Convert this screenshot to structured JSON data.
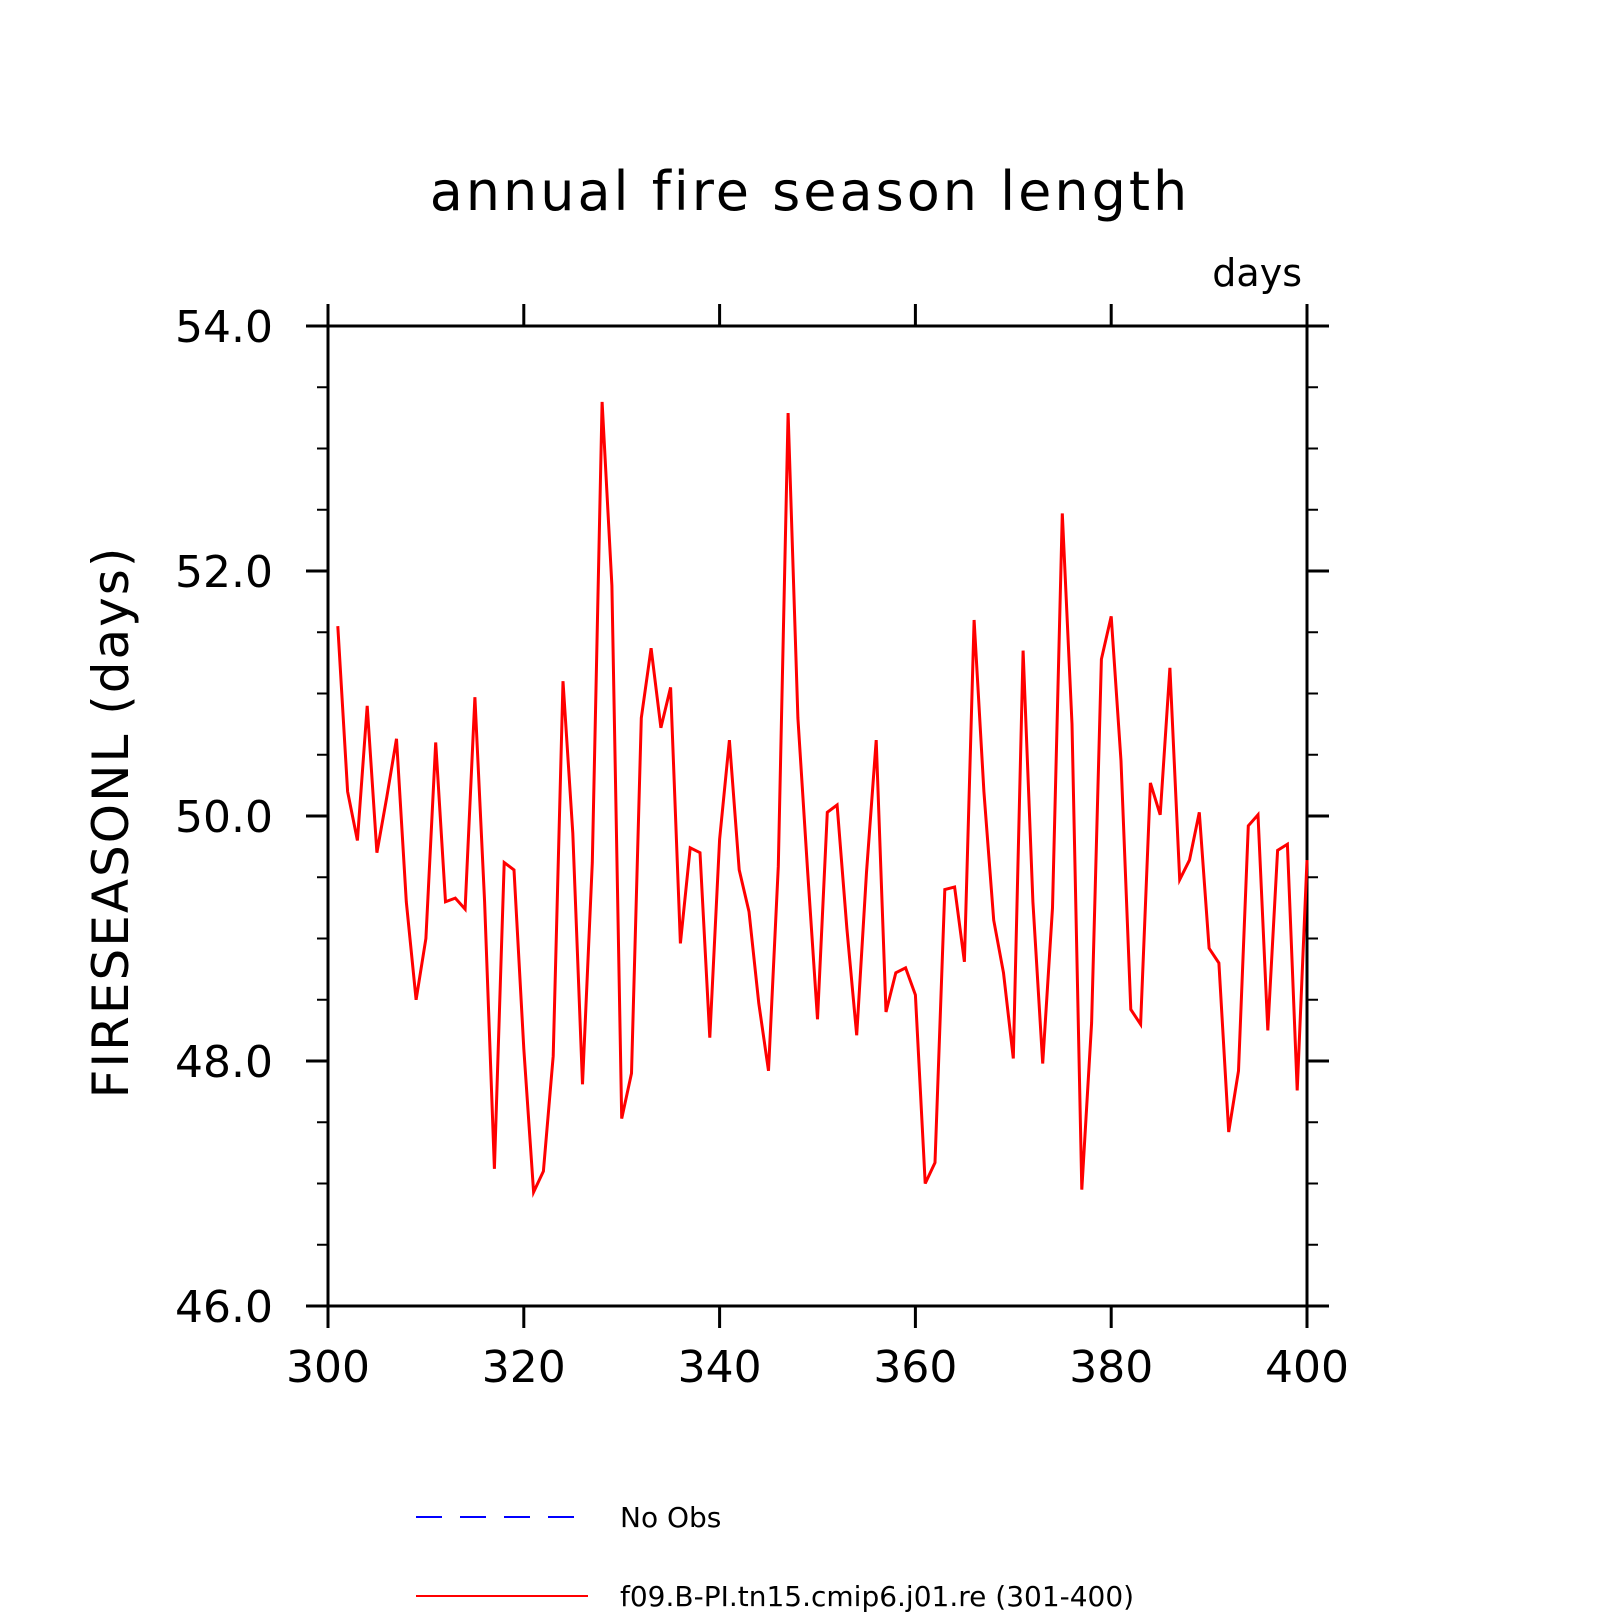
{
  "chart_data": {
    "type": "line",
    "title": "annual fire season length",
    "units": "days",
    "xlabel": "",
    "ylabel": "FIRESEASONL  (days)",
    "xlim": [
      300,
      400
    ],
    "ylim": [
      46,
      54
    ],
    "x_ticks": [
      "300",
      "320",
      "340",
      "360",
      "380",
      "400"
    ],
    "x_tick_values": [
      300,
      320,
      340,
      360,
      380,
      400
    ],
    "y_ticks": [
      "46.0",
      "48.0",
      "50.0",
      "52.0",
      "54.0"
    ],
    "y_tick_values": [
      46,
      48,
      50,
      52,
      54
    ],
    "grid": false,
    "legend_position": "bottom",
    "legend": [
      {
        "label": "No Obs",
        "color": "#0000ff",
        "style": "dashed"
      },
      {
        "label": "f09.B-PI.tn15.cmip6.j01.re (301-400)",
        "color": "#ff0000",
        "style": "solid"
      }
    ],
    "series": [
      {
        "name": "f09.B-PI.tn15.cmip6.j01.re (301-400)",
        "color": "#ff0000",
        "x": [
          301,
          302,
          303,
          304,
          305,
          306,
          307,
          308,
          309,
          310,
          311,
          312,
          313,
          314,
          315,
          316,
          317,
          318,
          319,
          320,
          321,
          322,
          323,
          324,
          325,
          326,
          327,
          328,
          329,
          330,
          331,
          332,
          333,
          334,
          335,
          336,
          337,
          338,
          339,
          340,
          341,
          342,
          343,
          344,
          345,
          346,
          347,
          348,
          349,
          350,
          351,
          352,
          353,
          354,
          355,
          356,
          357,
          358,
          359,
          360,
          361,
          362,
          363,
          364,
          365,
          366,
          367,
          368,
          369,
          370,
          371,
          372,
          373,
          374,
          375,
          376,
          377,
          378,
          379,
          380,
          381,
          382,
          383,
          384,
          385,
          386,
          387,
          388,
          389,
          390,
          391,
          392,
          393,
          394,
          395,
          396,
          397,
          398,
          399,
          400
        ],
        "values": [
          51.55,
          50.2,
          49.8,
          50.9,
          49.7,
          50.15,
          50.63,
          49.3,
          48.5,
          49.0,
          50.6,
          49.3,
          49.33,
          49.24,
          50.97,
          49.3,
          47.12,
          49.62,
          49.56,
          48.1,
          46.93,
          47.1,
          48.04,
          51.1,
          49.86,
          47.81,
          49.62,
          53.38,
          51.88,
          47.53,
          47.9,
          50.8,
          51.37,
          50.72,
          51.05,
          48.96,
          49.74,
          49.7,
          48.19,
          49.81,
          50.62,
          49.56,
          49.22,
          48.47,
          47.92,
          49.59,
          53.29,
          50.8,
          49.54,
          48.34,
          50.03,
          50.09,
          49.08,
          48.21,
          49.54,
          50.62,
          48.4,
          48.72,
          48.76,
          48.54,
          47.0,
          47.17,
          49.4,
          49.42,
          48.81,
          51.6,
          50.2,
          49.15,
          48.72,
          48.02,
          51.35,
          49.3,
          47.98,
          49.25,
          52.47,
          50.75,
          46.95,
          48.31,
          51.28,
          51.63,
          50.45,
          48.42,
          48.3,
          50.27,
          50.01,
          51.21,
          49.48,
          49.64,
          50.03,
          48.92,
          48.8,
          47.42,
          47.92,
          49.92,
          50.01,
          48.25,
          49.72,
          49.77,
          47.76,
          49.64
        ]
      }
    ]
  }
}
